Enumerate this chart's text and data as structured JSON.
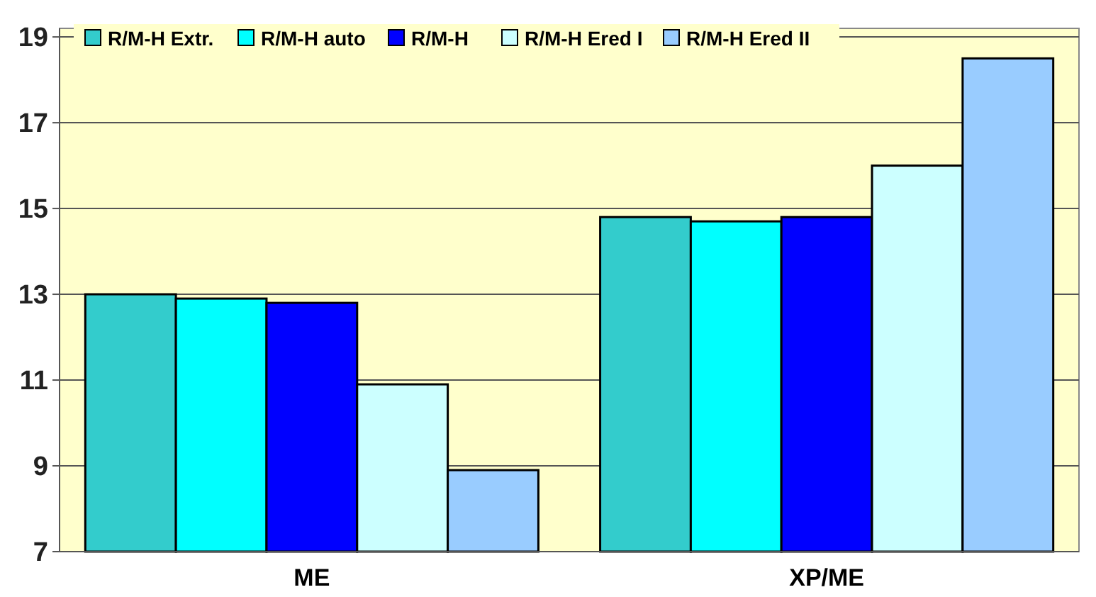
{
  "chart_data": {
    "type": "bar",
    "categories": [
      "ME",
      "XP/ME"
    ],
    "series": [
      {
        "name": "R/M-H Extr.",
        "color": "#33cccc",
        "values": [
          13.0,
          14.8
        ]
      },
      {
        "name": "R/M-H auto",
        "color": "#00ffff",
        "values": [
          12.9,
          14.7
        ]
      },
      {
        "name": "R/M-H",
        "color": "#0000ff",
        "values": [
          12.8,
          14.8
        ]
      },
      {
        "name": "R/M-H Ered I",
        "color": "#ccffff",
        "values": [
          10.9,
          16.0
        ]
      },
      {
        "name": "R/M-H Ered II",
        "color": "#99ccff",
        "values": [
          8.9,
          18.5
        ]
      }
    ],
    "ylim": [
      7,
      19.2
    ],
    "yticks": [
      7,
      9,
      11,
      13,
      15,
      17,
      19
    ],
    "grid": "y",
    "legend": "top"
  }
}
